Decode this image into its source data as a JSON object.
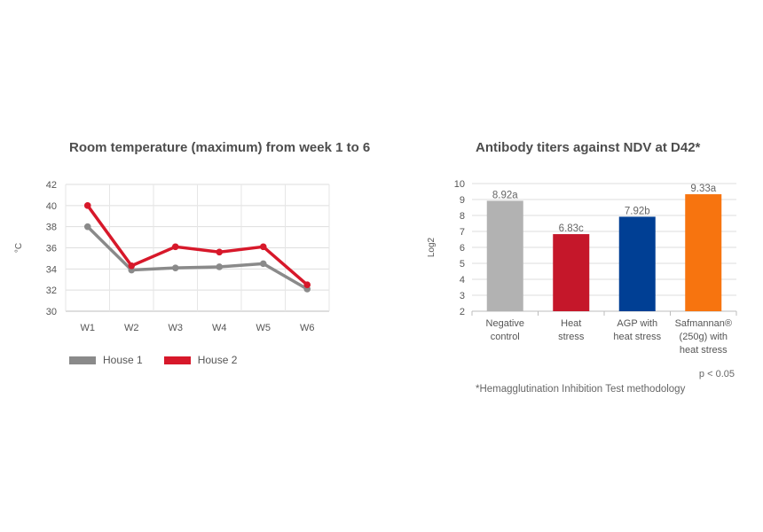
{
  "chart_data": [
    {
      "type": "line",
      "title": "Room temperature (maximum) from week 1 to 6",
      "ylabel": "°C",
      "xlabel": "",
      "categories": [
        "W1",
        "W2",
        "W3",
        "W4",
        "W5",
        "W6"
      ],
      "ylim": [
        30,
        42
      ],
      "yticks": [
        30,
        32,
        34,
        36,
        38,
        40,
        42
      ],
      "grid": true,
      "legend": "bottom-left",
      "series": [
        {
          "name": "House 1",
          "color": "#8a8a8a",
          "values": [
            38.0,
            33.9,
            34.1,
            34.2,
            34.5,
            32.1
          ]
        },
        {
          "name": "House 2",
          "color": "#d7182a",
          "values": [
            40.0,
            34.3,
            36.1,
            35.6,
            36.1,
            32.5
          ]
        }
      ]
    },
    {
      "type": "bar",
      "title": "Antibody titers against NDV at D42*",
      "ylabel": "Log2",
      "xlabel": "",
      "ylim": [
        2,
        10
      ],
      "yticks": [
        2,
        3,
        4,
        5,
        6,
        7,
        8,
        9,
        10
      ],
      "grid": true,
      "bars": [
        {
          "label_lines": [
            "Negative",
            "control"
          ],
          "value": 8.92,
          "data_label": "8.92a",
          "color": "#b2b2b2"
        },
        {
          "label_lines": [
            "Heat",
            "stress"
          ],
          "value": 6.83,
          "data_label": "6.83c",
          "color": "#c5172a"
        },
        {
          "label_lines": [
            "AGP with",
            "heat stress"
          ],
          "value": 7.92,
          "data_label": "7.92b",
          "color": "#003f94"
        },
        {
          "label_lines": [
            "Safmannan®",
            "(250g) with",
            "heat stress"
          ],
          "value": 9.33,
          "data_label": "9.33a",
          "color": "#f7740f"
        }
      ],
      "notes": {
        "significance": "p < 0.05",
        "methodology": "*Hemagglutination Inhibition Test methodology"
      }
    }
  ]
}
